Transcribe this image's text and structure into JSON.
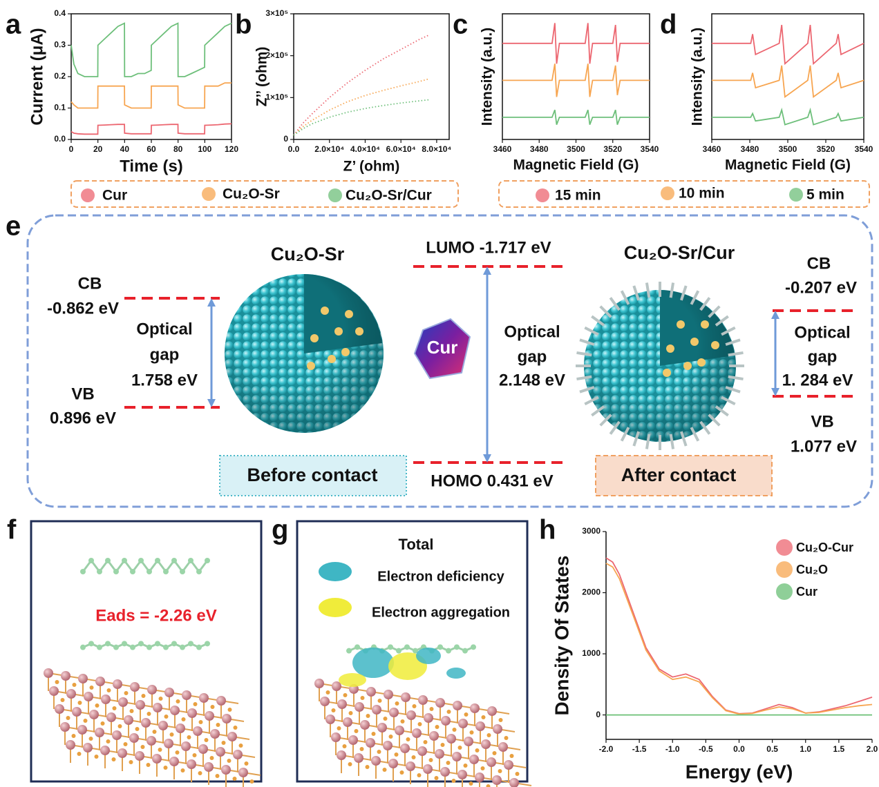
{
  "panels": {
    "labels": [
      "a",
      "b",
      "c",
      "d",
      "e",
      "f",
      "g",
      "h"
    ]
  },
  "chart_data": [
    {
      "type": "line",
      "xlabel": "Time (s)",
      "ylabel": "Current  (μA)",
      "x": [
        0,
        2,
        5,
        10,
        19.9,
        20,
        25,
        30,
        35,
        39.9,
        40,
        45,
        50,
        55,
        59.9,
        60,
        65,
        70,
        75,
        79.9,
        80,
        85,
        90,
        95,
        99.9,
        100,
        105,
        110,
        115,
        120
      ],
      "xlim": [
        0,
        120
      ],
      "xticks": [
        0,
        20,
        40,
        60,
        80,
        100,
        120
      ],
      "ylim": [
        0,
        0.4
      ],
      "yticks": [
        {
          "value": 0,
          "label": "0.0"
        },
        0.1,
        0.2,
        0.3,
        0.4
      ],
      "series": [
        {
          "name": "Cur",
          "color": "#ec6670",
          "values": [
            0.025,
            0.02,
            0.018,
            0.017,
            0.017,
            0.045,
            0.046,
            0.047,
            0.048,
            0.048,
            0.02,
            0.018,
            0.018,
            0.018,
            0.018,
            0.045,
            0.046,
            0.047,
            0.048,
            0.048,
            0.02,
            0.018,
            0.018,
            0.018,
            0.018,
            0.045,
            0.046,
            0.047,
            0.049,
            0.05
          ]
        },
        {
          "name": "Cu₂O-Sr",
          "color": "#f7a550",
          "values": [
            0.12,
            0.11,
            0.1,
            0.1,
            0.1,
            0.17,
            0.17,
            0.17,
            0.17,
            0.17,
            0.11,
            0.1,
            0.1,
            0.1,
            0.1,
            0.17,
            0.17,
            0.17,
            0.17,
            0.17,
            0.11,
            0.1,
            0.1,
            0.1,
            0.1,
            0.17,
            0.17,
            0.17,
            0.18,
            0.18
          ]
        },
        {
          "name": "Cu₂O-Sr/Cur",
          "color": "#6dbf7a",
          "values": [
            0.3,
            0.24,
            0.21,
            0.2,
            0.2,
            0.3,
            0.32,
            0.34,
            0.36,
            0.37,
            0.2,
            0.2,
            0.21,
            0.21,
            0.22,
            0.3,
            0.32,
            0.34,
            0.36,
            0.37,
            0.2,
            0.2,
            0.21,
            0.22,
            0.23,
            0.3,
            0.32,
            0.34,
            0.36,
            0.37
          ]
        }
      ]
    },
    {
      "type": "line",
      "line_style": "dotted",
      "xlabel": "Z’ (ohm)",
      "ylabel": "Z’’ (ohm)",
      "x": [
        0,
        5000,
        10000,
        20000,
        30000,
        40000,
        50000,
        60000,
        70000,
        76000
      ],
      "xlim": [
        0,
        87000
      ],
      "xticks": [
        {
          "value": 0,
          "label": "0.0"
        },
        {
          "value": 20000,
          "label": "2.0×10⁴"
        },
        {
          "value": 40000,
          "label": "4.0×10⁴"
        },
        {
          "value": 60000,
          "label": "6.0×10⁴"
        },
        {
          "value": 80000,
          "label": "8.0×10⁴"
        }
      ],
      "ylim": [
        0,
        300000
      ],
      "yticks": [
        0,
        {
          "value": 100000,
          "label": "1×10⁵"
        },
        {
          "value": 200000,
          "label": "2×10⁵"
        },
        {
          "value": 300000,
          "label": "3×10⁵"
        }
      ],
      "series": [
        {
          "color": "#ec6670",
          "values": [
            10000,
            38000,
            60000,
            100000,
            135000,
            165000,
            192000,
            215000,
            238000,
            250000
          ]
        },
        {
          "color": "#f7a550",
          "values": [
            10000,
            30000,
            45000,
            70000,
            90000,
            105000,
            117000,
            128000,
            138000,
            145000
          ]
        },
        {
          "color": "#6dbf7a",
          "values": [
            10000,
            25000,
            37000,
            53000,
            65000,
            74000,
            81000,
            87000,
            92000,
            95000
          ]
        }
      ]
    },
    {
      "type": "line",
      "xlabel": "Magnetic Field (G)",
      "ylabel": "Intensity (a.u.)",
      "x": [
        3460,
        3487,
        3488.5,
        3489.5,
        3491,
        3505,
        3506.5,
        3507.5,
        3509,
        3520,
        3521.5,
        3522.5,
        3524,
        3540
      ],
      "xlim": [
        3460,
        3540
      ],
      "xticks": [
        3460,
        3480,
        3500,
        3520,
        3540
      ],
      "ylim": [
        0.4,
        3.8
      ],
      "series": [
        {
          "name": "15 min",
          "color": "#ec6670",
          "values": [
            3,
            3,
            3.55,
            2.45,
            3,
            3,
            3.55,
            2.45,
            3,
            3,
            3.5,
            2.5,
            3,
            3
          ]
        },
        {
          "name": "10 min",
          "color": "#f7a550",
          "values": [
            2,
            2,
            2.45,
            1.55,
            2,
            2,
            2.45,
            1.55,
            2,
            2,
            2.4,
            1.6,
            2,
            2
          ]
        },
        {
          "name": "5 min",
          "color": "#6dbf7a",
          "values": [
            1,
            1,
            1.2,
            0.8,
            1,
            1,
            1.2,
            0.8,
            1,
            1,
            1.2,
            0.8,
            1,
            1
          ]
        }
      ]
    },
    {
      "type": "line",
      "xlabel": "Magnetic Field (G)",
      "ylabel": "Intensity (a.u.)",
      "x": [
        3460,
        3480.5,
        3481.5,
        3483,
        3495.5,
        3496.8,
        3498.5,
        3510.5,
        3511.8,
        3513.5,
        3525.5,
        3526.5,
        3528,
        3540
      ],
      "xlim": [
        3460,
        3540
      ],
      "xticks": [
        3460,
        3480,
        3500,
        3520,
        3540
      ],
      "ylim": [
        0.4,
        3.8
      ],
      "series": [
        {
          "color": "#ec6670",
          "values": [
            3,
            3,
            3.25,
            2.7,
            3,
            3.5,
            2.45,
            3,
            3.5,
            2.45,
            3,
            3.25,
            2.7,
            3
          ]
        },
        {
          "color": "#f7a550",
          "values": [
            2,
            2,
            2.2,
            1.8,
            2,
            2.4,
            1.55,
            2,
            2.4,
            1.55,
            2,
            2.2,
            1.8,
            2
          ]
        },
        {
          "color": "#6dbf7a",
          "values": [
            1,
            1,
            1.1,
            0.9,
            1,
            1.2,
            0.8,
            1,
            1.2,
            0.8,
            1,
            1.1,
            0.9,
            1
          ]
        }
      ]
    },
    {
      "type": "line",
      "xlabel": "Energy (eV)",
      "ylabel": "Density Of States",
      "x": [
        -2,
        -1.9,
        -1.8,
        -1.6,
        -1.4,
        -1.2,
        -1.0,
        -0.8,
        -0.6,
        -0.4,
        -0.2,
        0,
        0.2,
        0.4,
        0.6,
        0.8,
        1.0,
        1.2,
        1.4,
        1.6,
        1.8,
        2.0
      ],
      "xlim": [
        -2,
        2
      ],
      "xticks": [
        {
          "value": -2,
          "label": "-2.0"
        },
        -1.5,
        {
          "value": -1,
          "label": "-1.0"
        },
        -0.5,
        {
          "value": 0,
          "label": "0.0"
        },
        0.5,
        {
          "value": 1,
          "label": "1.0"
        },
        1.5,
        {
          "value": 2,
          "label": "2.0"
        }
      ],
      "ylim": [
        -400,
        3000
      ],
      "yticks": [
        0,
        1000,
        2000,
        3000
      ],
      "series": [
        {
          "name": "Cu₂O-Cur",
          "color": "#ec6670",
          "values": [
            2570,
            2500,
            2300,
            1700,
            1100,
            750,
            620,
            670,
            580,
            300,
            80,
            20,
            30,
            100,
            170,
            120,
            30,
            50,
            100,
            150,
            220,
            290
          ]
        },
        {
          "name": "Cu₂O",
          "color": "#f7a550",
          "values": [
            2480,
            2420,
            2230,
            1650,
            1060,
            720,
            580,
            620,
            540,
            280,
            70,
            15,
            25,
            80,
            130,
            100,
            30,
            40,
            80,
            120,
            150,
            170
          ]
        },
        {
          "name": "Cur",
          "color": "#6abf75",
          "values": [
            0,
            0,
            0,
            0,
            0,
            0,
            0,
            0,
            0,
            0,
            0,
            0,
            0,
            0,
            0,
            0,
            0,
            0,
            0,
            0,
            0,
            0
          ]
        }
      ]
    }
  ],
  "diagram": {
    "left_title": "Cu₂O-Sr",
    "right_title": "Cu₂O-Sr/Cur",
    "molecule": "Cur",
    "left": {
      "cb_label": "CB",
      "cb_value": "-0.862 eV",
      "gap": [
        "Optical",
        "gap",
        "1.758 eV"
      ],
      "vb_label": "VB",
      "vb_value": "0.896 eV",
      "caption": "Before contact"
    },
    "center": {
      "lumo": "LUMO -1.717 eV",
      "gap": [
        "Optical",
        "gap",
        "2.148 eV"
      ],
      "homo": "HOMO 0.431 eV"
    },
    "right": {
      "cb_label": "CB",
      "cb_value": "-0.207 eV",
      "gap": [
        "Optical",
        "gap",
        "1. 284 eV"
      ],
      "vb_label": "VB",
      "vb_value": "1.077 eV",
      "caption": "After contact"
    }
  },
  "panel_f": {
    "energy": "Eads = -2.26 eV"
  },
  "panel_g": {
    "title": "Total",
    "legend": [
      "Electron deficiency",
      "Electron aggregation"
    ]
  }
}
